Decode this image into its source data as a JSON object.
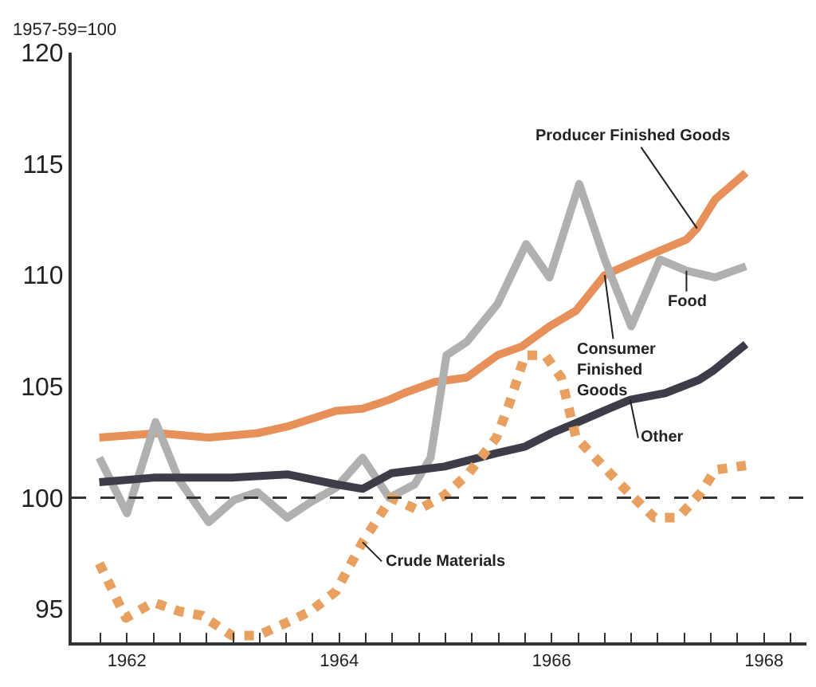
{
  "chart_data": {
    "type": "line",
    "ylabel": "1957-59=100",
    "annotations": [
      {
        "text": "Consumer Finished Goods",
        "x": 1967.0,
        "y": 110.0
      }
    ],
    "xlim": [
      1961.98,
      1968.9
    ],
    "ylim": [
      93.5,
      120
    ],
    "yticks": [
      95,
      100,
      105,
      110,
      115,
      120
    ],
    "xticks": [
      {
        "value": 1962.25,
        "label": null
      },
      {
        "value": 1962.5,
        "label": "1962"
      },
      {
        "value": 1962.75,
        "label": null
      },
      {
        "value": 1963,
        "label": null
      },
      {
        "value": 1963.25,
        "label": null
      },
      {
        "value": 1963.5,
        "label": null
      },
      {
        "value": 1963.75,
        "label": null
      },
      {
        "value": 1964,
        "label": null
      },
      {
        "value": 1964.25,
        "label": null
      },
      {
        "value": 1964.5,
        "label": "1964"
      },
      {
        "value": 1964.75,
        "label": null
      },
      {
        "value": 1965,
        "label": null
      },
      {
        "value": 1965.25,
        "label": null
      },
      {
        "value": 1965.5,
        "label": null
      },
      {
        "value": 1965.75,
        "label": null
      },
      {
        "value": 1966,
        "label": null
      },
      {
        "value": 1966.25,
        "label": null
      },
      {
        "value": 1966.5,
        "label": "1966"
      },
      {
        "value": 1966.75,
        "label": null
      },
      {
        "value": 1967,
        "label": null
      },
      {
        "value": 1967.25,
        "label": null
      },
      {
        "value": 1967.5,
        "label": null
      },
      {
        "value": 1967.75,
        "label": null
      },
      {
        "value": 1968,
        "label": null
      },
      {
        "value": 1968.25,
        "label": null
      },
      {
        "value": 1968.5,
        "label": "1968"
      },
      {
        "value": 1968.75,
        "label": null
      }
    ],
    "grid": false,
    "legend": false,
    "marker": "none",
    "ref_lines": [
      {
        "axis": "y",
        "value": 100,
        "label": null,
        "color": "#333333",
        "line_style": "dashed"
      }
    ],
    "series": [
      {
        "name": "Producer Finished Goods",
        "color": "#e8905a",
        "line_style": "solid",
        "x": [
          1962.24,
          1962.8,
          1963.27,
          1963.73,
          1964.01,
          1964.47,
          1964.72,
          1964.97,
          1965.11,
          1965.4,
          1965.7,
          1965.99,
          1966.22,
          1966.48,
          1966.73,
          1967.0,
          1967.28,
          1967.52,
          1967.77,
          1967.87,
          1968.04,
          1968.33
        ],
        "values": [
          102.7,
          102.9,
          102.7,
          102.9,
          103.2,
          103.9,
          104.0,
          104.4,
          104.7,
          105.2,
          105.4,
          106.4,
          106.8,
          107.7,
          108.4,
          110.0,
          110.6,
          111.1,
          111.6,
          112.1,
          113.4,
          114.6
        ]
      },
      {
        "name": "Food",
        "color": "#b0b0b0",
        "line_style": "solid",
        "x": [
          1962.24,
          1962.5,
          1962.77,
          1962.99,
          1963.27,
          1963.51,
          1963.73,
          1964.01,
          1964.23,
          1964.47,
          1964.72,
          1964.97,
          1965.21,
          1965.36,
          1965.51,
          1965.7,
          1965.99,
          1966.26,
          1966.48,
          1966.76,
          1967.0,
          1967.25,
          1967.52,
          1967.77,
          1968.04,
          1968.33
        ],
        "values": [
          101.8,
          99.3,
          103.4,
          100.8,
          98.9,
          99.9,
          100.25,
          99.1,
          99.8,
          100.45,
          101.8,
          100.0,
          100.6,
          101.8,
          106.4,
          107.0,
          108.7,
          111.4,
          109.9,
          114.1,
          110.7,
          107.7,
          110.7,
          110.2,
          109.9,
          110.4
        ]
      },
      {
        "name": "Other",
        "color": "#3d3d4a",
        "line_style": "solid",
        "x": [
          1962.24,
          1962.75,
          1963.49,
          1964.01,
          1964.47,
          1964.72,
          1964.99,
          1965.49,
          1965.98,
          1966.25,
          1966.5,
          1966.75,
          1966.99,
          1967.24,
          1967.57,
          1967.89,
          1968.02,
          1968.33
        ],
        "values": [
          100.7,
          100.9,
          100.9,
          101.05,
          100.6,
          100.4,
          101.1,
          101.4,
          102.0,
          102.3,
          102.9,
          103.4,
          103.9,
          104.4,
          104.7,
          105.3,
          105.7,
          106.9
        ]
      },
      {
        "name": "Crude Materials",
        "color": "#e8a060",
        "line_style": "dotted",
        "x": [
          1962.24,
          1962.49,
          1962.75,
          1962.99,
          1963.21,
          1963.49,
          1963.73,
          1964.01,
          1964.23,
          1964.47,
          1964.72,
          1964.99,
          1965.24,
          1965.49,
          1965.72,
          1965.98,
          1966.1,
          1966.25,
          1966.44,
          1966.59,
          1966.73,
          1966.99,
          1967.22,
          1967.47,
          1967.69,
          1967.91,
          1968.04,
          1968.33
        ],
        "values": [
          97.05,
          94.6,
          95.3,
          94.9,
          94.7,
          93.8,
          93.8,
          94.4,
          94.9,
          95.8,
          98.0,
          100.0,
          99.45,
          100.1,
          101.1,
          102.7,
          104.2,
          106.4,
          106.4,
          105.4,
          102.7,
          101.4,
          100.25,
          99.1,
          99.1,
          100.25,
          101.25,
          101.45
        ]
      }
    ]
  }
}
